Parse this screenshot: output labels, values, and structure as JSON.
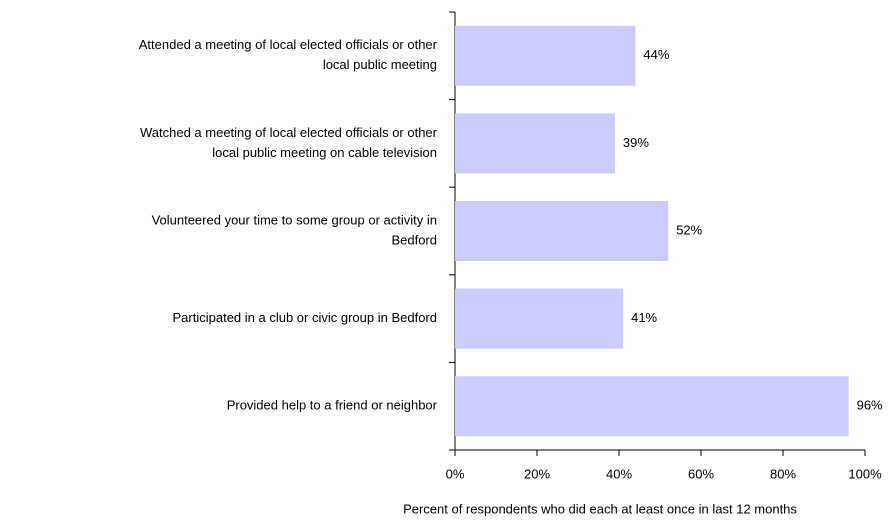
{
  "chart_data": {
    "type": "bar",
    "orientation": "horizontal",
    "categories": [
      [
        "Attended a meeting of local elected officials or other",
        "local public meeting"
      ],
      [
        "Watched a meeting of local elected officials or other",
        "local public meeting on cable television"
      ],
      [
        "Volunteered your time to some group or activity in",
        "Bedford"
      ],
      [
        "Participated in a club or civic group in Bedford"
      ],
      [
        "Provided help to a friend or neighbor"
      ]
    ],
    "values": [
      44,
      39,
      52,
      41,
      96
    ],
    "value_labels": [
      "44%",
      "39%",
      "52%",
      "41%",
      "96%"
    ],
    "color": "#ccccff",
    "xlim": [
      0,
      100
    ],
    "xticks": [
      {
        "value": 0,
        "label": "0%"
      },
      {
        "value": 20,
        "label": "20%"
      },
      {
        "value": 40,
        "label": "40%"
      },
      {
        "value": 60,
        "label": "60%"
      },
      {
        "value": 80,
        "label": "80%"
      },
      {
        "value": 100,
        "label": "100%"
      }
    ],
    "xlabel": "Percent of respondents who did each at least once in last 12 months"
  }
}
